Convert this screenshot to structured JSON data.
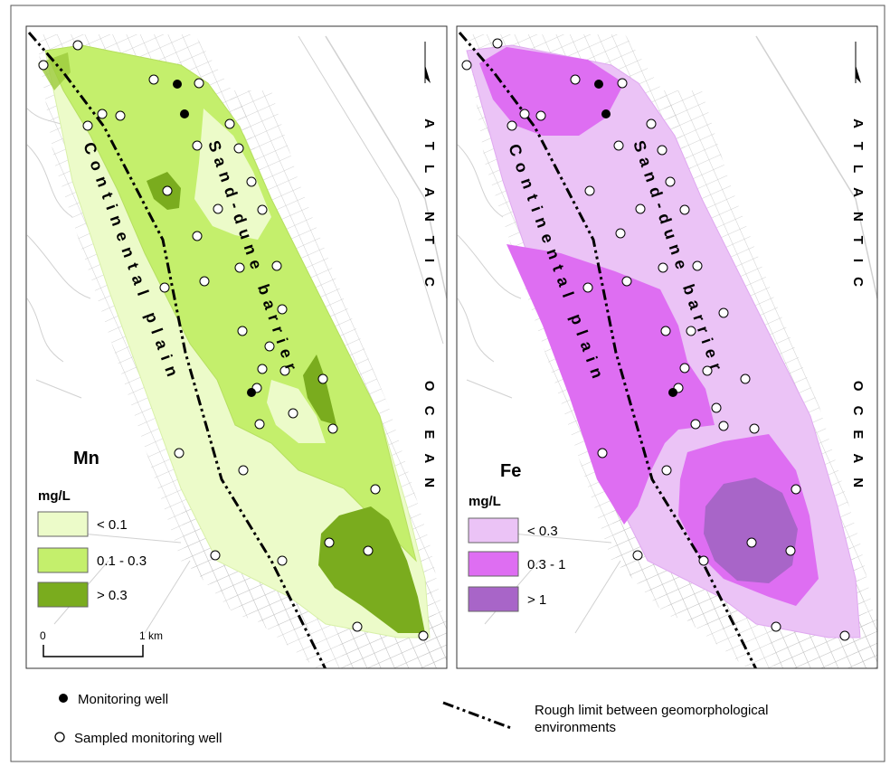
{
  "panels": [
    {
      "element": "Mn",
      "unit": "mg/L",
      "classes": [
        {
          "label": "< 0.1",
          "color": "#ecfbc9"
        },
        {
          "label": "0.1 - 0.3",
          "color": "#c4ef6c"
        },
        {
          "label": "> 0.3",
          "color": "#7aac1e"
        }
      ],
      "scalebar": {
        "start": "0",
        "end": "1 km"
      }
    },
    {
      "element": "Fe",
      "unit": "mg/L",
      "classes": [
        {
          "label": "< 0.3",
          "color": "#ebc3f6"
        },
        {
          "label": "0.3 - 1",
          "color": "#de6ef2"
        },
        {
          "label": "> 1",
          "color": "#a865c8"
        }
      ]
    }
  ],
  "map_labels": {
    "sand_dune": "Sand-dune barrier",
    "continental": "Continental plain",
    "atlantic": "ATLANTIC",
    "ocean": "OCEAN"
  },
  "legend": {
    "monitoring_well": "Monitoring well",
    "sampled_well": "Sampled monitoring well",
    "limit_line": "Rough limit between geomorphological environments"
  },
  "colors": {
    "streets": "#c9c9c9",
    "frame": "#333333",
    "limit_line": "#000000"
  }
}
